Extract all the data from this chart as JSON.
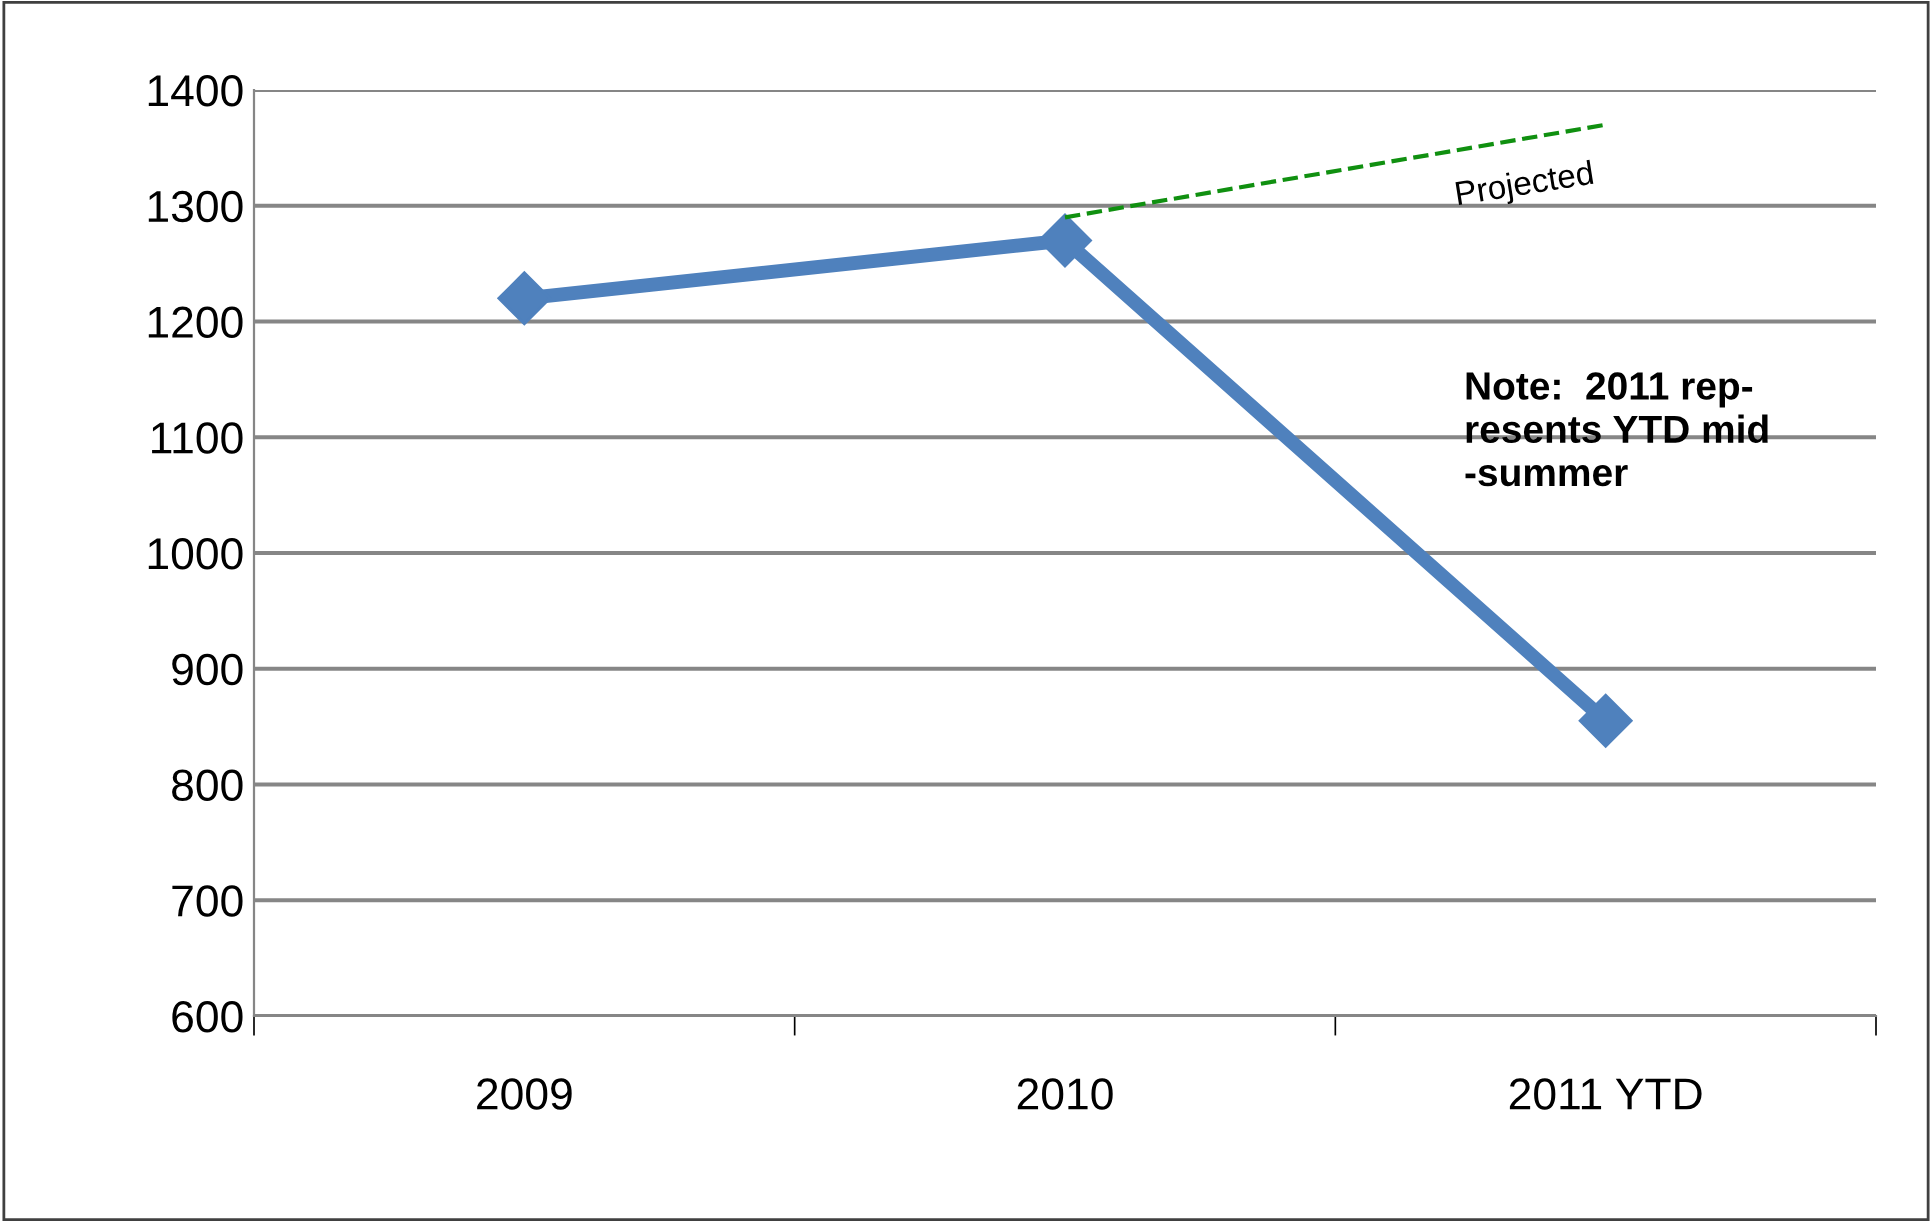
{
  "chart_data": {
    "type": "line",
    "categories": [
      "2009",
      "2010",
      "2011 YTD"
    ],
    "series": [
      {
        "name": null,
        "color": "#4f81bd",
        "values": [
          1220,
          1270,
          855
        ],
        "marker": "diamond",
        "line_style": "solid"
      },
      {
        "name": "Projected",
        "color": "#109010",
        "values": [
          null,
          1290,
          1370
        ],
        "marker": "none",
        "line_style": "dashed"
      }
    ],
    "ylim": [
      600,
      1400
    ],
    "yticks": [
      600,
      700,
      800,
      900,
      1000,
      1100,
      1200,
      1300,
      1400
    ],
    "grid": "y",
    "legend": false,
    "annotations": [
      "Note:  2011 rep-\nresents YTD mid\n-summer"
    ]
  }
}
